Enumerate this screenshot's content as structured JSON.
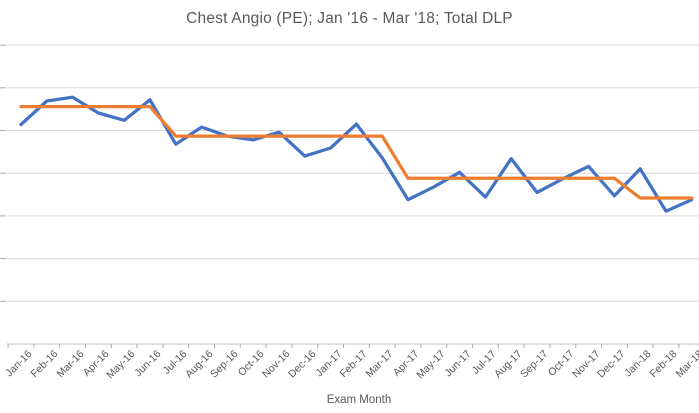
{
  "chart_data": {
    "type": "line",
    "title": "Chest Angio (PE); Jan '16 - Mar '18; Total DLP",
    "xlabel": "Exam Month",
    "ylabel": "",
    "legend": "none",
    "grid": "horizontal-on",
    "y_axis": {
      "labels_visible": false,
      "gridline_count": 8,
      "ylim": [
        0,
        7
      ],
      "units": "relative gridline divisions above the x-axis (no numeric y labels are shown in the image)"
    },
    "categories": [
      "Jan-16",
      "Feb-16",
      "Mar-16",
      "Apr-16",
      "May-16",
      "Jun-16",
      "Jul-16",
      "Aug-16",
      "Sep-16",
      "Oct-16",
      "Nov-16",
      "Dec-16",
      "Jan-17",
      "Feb-17",
      "Mar-17",
      "Apr-17",
      "May-17",
      "Jun-17",
      "Jul-17",
      "Aug-17",
      "Sep-17",
      "Oct-17",
      "Nov-17",
      "Dec-17",
      "Jan-18",
      "Feb-18",
      "Mar-18"
    ],
    "series": [
      {
        "name": "series-blue-monthly-values",
        "color": "#4472C4",
        "style": "jagged line",
        "values": [
          5.14,
          5.69,
          5.78,
          5.41,
          5.24,
          5.72,
          4.68,
          5.08,
          4.87,
          4.78,
          4.96,
          4.4,
          4.59,
          5.15,
          4.36,
          3.38,
          3.68,
          4.02,
          3.44,
          4.34,
          3.55,
          3.87,
          4.16,
          3.47,
          4.1,
          3.11,
          3.38
        ]
      },
      {
        "name": "series-orange-step-baseline",
        "color": "#ED7D31",
        "style": "step/plateau line",
        "values": [
          5.56,
          5.56,
          5.56,
          5.56,
          5.56,
          5.56,
          4.87,
          4.87,
          4.87,
          4.87,
          4.87,
          4.87,
          4.87,
          4.87,
          4.87,
          3.88,
          3.88,
          3.88,
          3.88,
          3.88,
          3.88,
          3.88,
          3.88,
          3.88,
          3.42,
          3.42,
          3.42
        ]
      }
    ]
  },
  "colors": {
    "title_text": "#595959",
    "axis_text": "#595959",
    "gridline": "#D9D9D9",
    "axis_line": "#BFBFBF",
    "tick_mark": "#ABABAB",
    "background": "#FFFFFF"
  }
}
